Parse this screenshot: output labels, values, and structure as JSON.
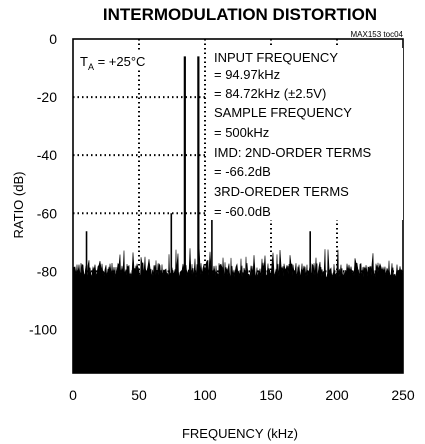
{
  "chart_data": {
    "type": "line",
    "title": "INTERMODULATION DISTORTION",
    "figure_code": "MAX153 toc04",
    "xlabel": "FREQUENCY (kHz)",
    "ylabel": "RATIO (dB)",
    "xlim": [
      0,
      250
    ],
    "ylim": [
      -115,
      0
    ],
    "x_ticks": [
      "0",
      "50",
      "100",
      "150",
      "200",
      "250"
    ],
    "y_ticks": [
      "0",
      "-20",
      "-40",
      "-60",
      "-80",
      "-100"
    ],
    "grid": "dotted",
    "annotation_temp_prefix": "T",
    "annotation_temp_sub": "A",
    "annotation_temp_suffix": " = +25°C",
    "annotations": [
      "INPUT FREQUENCY",
      "= 94.97kHz",
      "= 84.72kHz (±2.5V)",
      "SAMPLE FREQUENCY",
      "= 500kHz",
      "IMD: 2ND-ORDER TERMS",
      "= -66.2dB",
      "3RD-OREDER TERMS",
      "= -60.0dB"
    ],
    "series": [
      {
        "noise_floor_db": -82,
        "tones": [
          {
            "x": 84.72,
            "y": -6
          },
          {
            "x": 94.97,
            "y": -6
          }
        ],
        "spurs": [
          {
            "x": 10.25,
            "y": -66.2
          },
          {
            "x": 74.47,
            "y": -60.0
          },
          {
            "x": 105.22,
            "y": -60.0
          },
          {
            "x": 179.69,
            "y": -66.2
          }
        ]
      }
    ]
  }
}
